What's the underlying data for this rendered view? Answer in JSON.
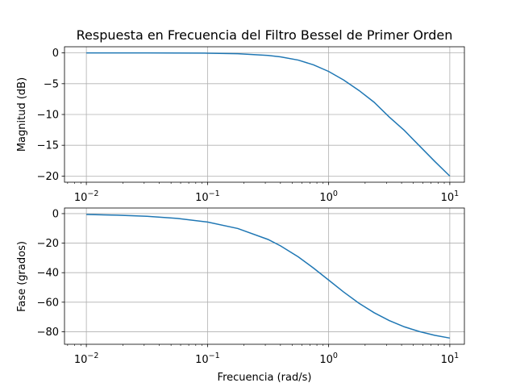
{
  "chart_data": [
    {
      "type": "line",
      "title": "Respuesta en Frecuencia del Filtro Bessel de Primer Orden",
      "xlabel": "",
      "ylabel": "Magnitud (dB)",
      "xscale": "log",
      "xlim": [
        0.0066,
        13.2
      ],
      "ylim": [
        -21,
        1
      ],
      "grid": true,
      "xticks": [
        0.01,
        0.1,
        1,
        10
      ],
      "xtick_labels": [
        {
          "base": "10",
          "exp": "−2"
        },
        {
          "base": "10",
          "exp": "−1"
        },
        {
          "base": "10",
          "exp": "0"
        },
        {
          "base": "10",
          "exp": "1"
        }
      ],
      "yticks": [
        0,
        -5,
        -10,
        -15,
        -20
      ],
      "ytick_labels": [
        "0",
        "−5",
        "−10",
        "−15",
        "−20"
      ],
      "series": [
        {
          "color": "#1f77b4",
          "x": [
            0.01,
            0.0178,
            0.0316,
            0.0562,
            0.1,
            0.178,
            0.316,
            0.4,
            0.562,
            0.75,
            1.0,
            1.33,
            1.78,
            2.37,
            3.16,
            4.22,
            5.62,
            7.5,
            10.0
          ],
          "y": [
            0.0,
            -0.001,
            -0.004,
            -0.014,
            -0.04,
            -0.13,
            -0.41,
            -0.64,
            -1.17,
            -1.94,
            -3.01,
            -4.4,
            -6.1,
            -8.0,
            -10.4,
            -12.6,
            -15.1,
            -17.6,
            -20.0
          ]
        }
      ]
    },
    {
      "type": "line",
      "title": "",
      "xlabel": "Frecuencia (rad/s)",
      "ylabel": "Fase (grados)",
      "xscale": "log",
      "xlim": [
        0.0066,
        13.2
      ],
      "ylim": [
        -88.5,
        3.8
      ],
      "grid": true,
      "xticks": [
        0.01,
        0.1,
        1,
        10
      ],
      "xtick_labels": [
        {
          "base": "10",
          "exp": "−2"
        },
        {
          "base": "10",
          "exp": "−1"
        },
        {
          "base": "10",
          "exp": "0"
        },
        {
          "base": "10",
          "exp": "1"
        }
      ],
      "yticks": [
        0,
        -20,
        -40,
        -60,
        -80
      ],
      "ytick_labels": [
        "0",
        "−20",
        "−40",
        "−60",
        "−80"
      ],
      "series": [
        {
          "color": "#1f77b4",
          "x": [
            0.01,
            0.0178,
            0.0316,
            0.0562,
            0.1,
            0.178,
            0.316,
            0.4,
            0.562,
            0.75,
            1.0,
            1.33,
            1.78,
            2.37,
            3.16,
            4.22,
            5.62,
            7.5,
            10.0
          ],
          "y": [
            -0.57,
            -1.02,
            -1.81,
            -3.22,
            -5.71,
            -10.1,
            -17.5,
            -21.8,
            -29.3,
            -36.9,
            -45.0,
            -53.1,
            -60.7,
            -67.1,
            -72.4,
            -76.7,
            -79.9,
            -82.4,
            -84.3
          ]
        }
      ]
    }
  ]
}
